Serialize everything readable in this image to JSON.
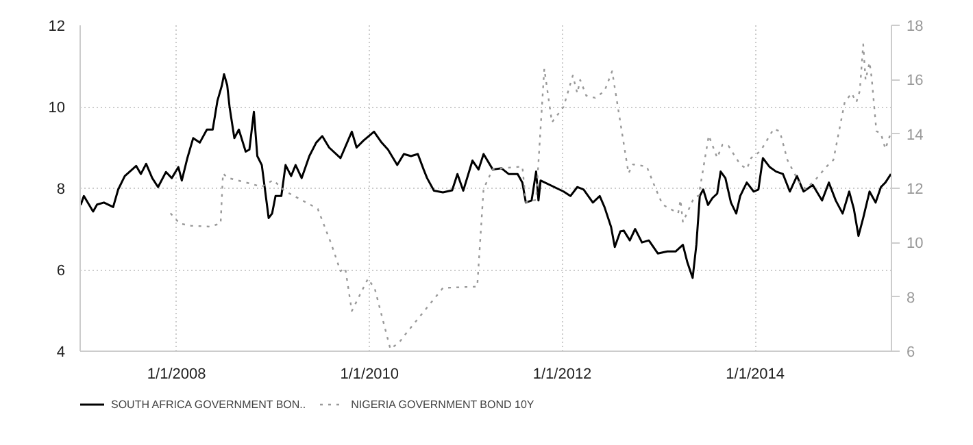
{
  "chart_data": {
    "type": "line",
    "xlim": [
      "2007-01-01",
      "2015-06-01"
    ],
    "xticks": [
      {
        "value": "2008-01-01",
        "label": "1/1/2008"
      },
      {
        "value": "2010-01-01",
        "label": "1/1/2010"
      },
      {
        "value": "2012-01-01",
        "label": "1/1/2012"
      },
      {
        "value": "2014-01-01",
        "label": "1/1/2014"
      }
    ],
    "ylim": [
      4,
      12
    ],
    "yticks": [
      4,
      6,
      8,
      10,
      12
    ],
    "y2lim": [
      6,
      18
    ],
    "y2ticks": [
      6,
      8,
      10,
      12,
      14,
      16,
      18
    ],
    "grid": true,
    "legend": "bottom left",
    "series": [
      {
        "name": "SOUTH AFRICA GOVERNMENT BON..",
        "color": "#000000",
        "line_style": "solid",
        "axis": "y",
        "x": [
          "2007-01-03",
          "2007-01-15",
          "2007-02-19",
          "2007-03-06",
          "2007-04-01",
          "2007-05-06",
          "2007-05-25",
          "2007-06-19",
          "2007-08-01",
          "2007-08-19",
          "2007-09-08",
          "2007-10-01",
          "2007-10-23",
          "2007-11-22",
          "2007-12-14",
          "2008-01-08",
          "2008-01-21",
          "2008-02-11",
          "2008-03-04",
          "2008-03-29",
          "2008-04-25",
          "2008-05-17",
          "2008-06-04",
          "2008-06-21",
          "2008-06-29",
          "2008-07-11",
          "2008-07-20",
          "2008-08-07",
          "2008-08-24",
          "2008-09-19",
          "2008-10-03",
          "2008-10-20",
          "2008-11-02",
          "2008-11-19",
          "2008-12-15",
          "2008-12-28",
          "2009-01-10",
          "2009-02-01",
          "2009-02-17",
          "2009-03-10",
          "2009-03-27",
          "2009-04-19",
          "2009-05-18",
          "2009-06-13",
          "2009-07-06",
          "2009-08-01",
          "2009-09-13",
          "2009-10-26",
          "2009-11-13",
          "2009-12-09",
          "2010-01-18",
          "2010-02-16",
          "2010-03-12",
          "2010-04-16",
          "2010-05-11",
          "2010-06-07",
          "2010-07-03",
          "2010-07-25",
          "2010-08-07",
          "2010-09-02",
          "2010-10-06",
          "2010-11-10",
          "2010-11-30",
          "2010-12-22",
          "2011-01-26",
          "2011-02-18",
          "2011-03-09",
          "2011-04-13",
          "2011-05-16",
          "2011-06-12",
          "2011-07-16",
          "2011-08-03",
          "2011-08-16",
          "2011-09-07",
          "2011-09-24",
          "2011-10-03",
          "2011-10-11",
          "2012-01-06",
          "2012-02-01",
          "2012-02-27",
          "2012-03-22",
          "2012-04-26",
          "2012-05-22",
          "2012-06-09",
          "2012-07-04",
          "2012-07-18",
          "2012-08-08",
          "2012-08-21",
          "2012-09-13",
          "2012-10-03",
          "2012-10-29",
          "2012-11-24",
          "2012-12-28",
          "2013-02-02",
          "2013-03-06",
          "2013-04-02",
          "2013-04-19",
          "2013-05-09",
          "2013-05-23",
          "2013-06-05",
          "2013-06-18",
          "2013-07-06",
          "2013-07-23",
          "2013-08-10",
          "2013-08-23",
          "2013-09-10",
          "2013-10-01",
          "2013-10-21",
          "2013-11-05",
          "2013-11-30",
          "2013-12-26",
          "2014-01-13",
          "2014-01-30",
          "2014-02-25",
          "2014-03-21",
          "2014-04-16",
          "2014-05-12",
          "2014-06-08",
          "2014-07-03",
          "2014-08-07",
          "2014-09-11",
          "2014-10-07",
          "2014-11-02",
          "2014-11-28",
          "2014-12-23",
          "2015-01-10",
          "2015-01-27",
          "2015-02-14",
          "2015-03-10",
          "2015-04-02",
          "2015-04-22",
          "2015-05-09",
          "2015-05-30"
        ],
        "values": [
          7.59,
          7.81,
          7.43,
          7.6,
          7.65,
          7.54,
          7.97,
          8.3,
          8.55,
          8.35,
          8.6,
          8.25,
          8.03,
          8.4,
          8.25,
          8.52,
          8.19,
          8.74,
          9.23,
          9.12,
          9.44,
          9.44,
          10.15,
          10.53,
          10.8,
          10.53,
          9.99,
          9.23,
          9.44,
          8.9,
          8.95,
          9.88,
          8.79,
          8.57,
          7.27,
          7.38,
          7.81,
          7.81,
          8.57,
          8.3,
          8.57,
          8.25,
          8.79,
          9.12,
          9.28,
          9.0,
          8.74,
          9.39,
          9.0,
          9.17,
          9.39,
          9.12,
          8.95,
          8.57,
          8.84,
          8.79,
          8.84,
          8.46,
          8.25,
          7.94,
          7.9,
          7.95,
          8.35,
          7.94,
          8.68,
          8.46,
          8.84,
          8.46,
          8.49,
          8.35,
          8.35,
          8.14,
          7.65,
          7.7,
          8.41,
          7.7,
          8.19,
          7.92,
          7.81,
          8.03,
          7.97,
          7.65,
          7.81,
          7.54,
          7.05,
          6.56,
          6.94,
          6.96,
          6.72,
          7.0,
          6.67,
          6.72,
          6.4,
          6.45,
          6.45,
          6.61,
          6.18,
          5.8,
          6.61,
          7.81,
          7.97,
          7.59,
          7.76,
          7.87,
          8.41,
          8.25,
          7.65,
          7.38,
          7.81,
          8.14,
          7.92,
          7.97,
          8.74,
          8.52,
          8.41,
          8.35,
          7.92,
          8.3,
          7.92,
          8.08,
          7.7,
          8.14,
          7.7,
          7.38,
          7.92,
          7.48,
          6.83,
          7.27,
          7.92,
          7.65,
          8.03,
          8.14,
          8.35
        ]
      },
      {
        "name": "NIGERIA GOVERNMENT BOND 10Y",
        "color": "#999999",
        "line_style": "dotted",
        "axis": "y2",
        "x": [
          "2007-12-09",
          "2008-01-13",
          "2008-02-25",
          "2008-05-03",
          "2008-06-16",
          "2008-06-25",
          "2008-07-11",
          "2008-11-19",
          "2009-01-01",
          "2009-02-14",
          "2009-06-05",
          "2009-06-19",
          "2009-08-10",
          "2009-09-13",
          "2009-10-01",
          "2009-10-26",
          "2009-12-26",
          "2010-01-21",
          "2010-03-21",
          "2010-04-24",
          "2010-05-20",
          "2010-10-06",
          "2011-02-13",
          "2011-03-09",
          "2011-04-13",
          "2011-08-03",
          "2011-08-16",
          "2011-09-24",
          "2011-10-25",
          "2011-11-23",
          "2012-01-06",
          "2012-02-10",
          "2012-02-27",
          "2012-03-09",
          "2012-04-01",
          "2012-05-05",
          "2012-06-09",
          "2012-07-08",
          "2012-09-08",
          "2012-09-25",
          "2012-11-16",
          "2012-12-20",
          "2013-01-15",
          "2013-03-15",
          "2013-03-24",
          "2013-04-02",
          "2013-05-14",
          "2013-06-01",
          "2013-07-09",
          "2013-08-10",
          "2013-08-30",
          "2013-09-22",
          "2013-10-09",
          "2013-11-05",
          "2013-11-30",
          "2013-12-17",
          "2014-01-21",
          "2014-03-12",
          "2014-04-04",
          "2014-05-03",
          "2014-06-16",
          "2014-07-11",
          "2014-08-16",
          "2014-09-28",
          "2014-10-24",
          "2014-12-06",
          "2015-01-01",
          "2015-01-19",
          "2015-02-01",
          "2015-02-14",
          "2015-02-23",
          "2015-03-10",
          "2015-03-18",
          "2015-04-05",
          "2015-04-22",
          "2015-05-09",
          "2015-05-26"
        ],
        "values": [
          11.08,
          10.7,
          10.62,
          10.59,
          10.7,
          12.55,
          12.39,
          12.06,
          12.3,
          11.9,
          11.32,
          11.24,
          9.93,
          8.95,
          9.06,
          7.48,
          8.67,
          8.3,
          6.08,
          6.33,
          6.66,
          8.33,
          8.38,
          11.98,
          12.71,
          12.8,
          11.49,
          11.57,
          16.4,
          14.43,
          15.0,
          16.15,
          15.5,
          15.99,
          15.41,
          15.33,
          15.58,
          16.31,
          12.55,
          12.88,
          12.8,
          11.98,
          11.4,
          11.08,
          11.57,
          10.75,
          11.65,
          11.73,
          13.94,
          13.12,
          13.61,
          13.56,
          13.29,
          12.88,
          12.71,
          13.12,
          13.37,
          14.19,
          14.1,
          13.04,
          12.22,
          11.98,
          12.3,
          12.8,
          13.04,
          15.17,
          15.5,
          15.17,
          15.58,
          17.3,
          15.99,
          16.64,
          16.07,
          14.1,
          14.02,
          13.45,
          13.94
        ]
      }
    ]
  }
}
